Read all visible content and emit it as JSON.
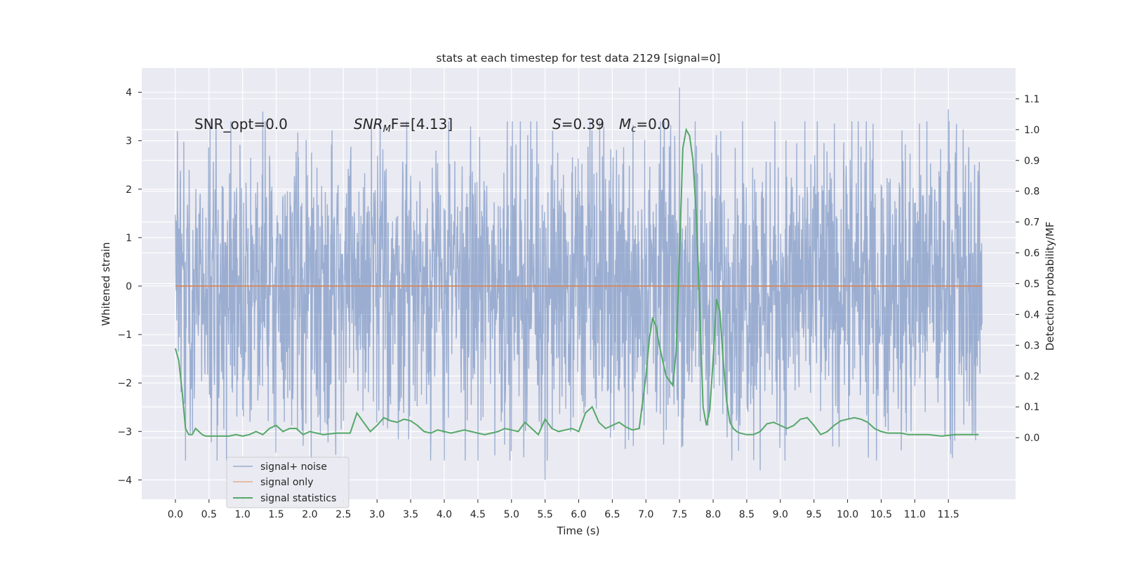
{
  "chart_data": {
    "type": "line",
    "title": "stats at each timestep for test data 2129 [signal=0]",
    "xlabel": "Time (s)",
    "ylabel_left": "Whitened strain",
    "ylabel_right": "Detection probability/MF",
    "xlim": [
      -0.5,
      12.5
    ],
    "ylim_left": [
      -4.4,
      4.5
    ],
    "ylim_right": [
      -0.2,
      1.2
    ],
    "x_ticks": [
      "0.0",
      "0.5",
      "1.0",
      "1.5",
      "2.0",
      "2.5",
      "3.0",
      "3.5",
      "4.0",
      "4.5",
      "5.0",
      "5.5",
      "6.0",
      "6.5",
      "7.0",
      "7.5",
      "8.0",
      "8.5",
      "9.0",
      "9.5",
      "10.0",
      "10.5",
      "11.0",
      "11.5"
    ],
    "y_ticks_left": [
      "4",
      "3",
      "2",
      "1",
      "0",
      "−1",
      "−2",
      "−3",
      "−4"
    ],
    "y_ticks_right": [
      "1.1",
      "1.0",
      "0.9",
      "0.8",
      "0.7",
      "0.6",
      "0.5",
      "0.4",
      "0.3",
      "0.2",
      "0.1",
      "0.0"
    ],
    "grid": true,
    "legend_position": "lower-left",
    "annotations": {
      "snr_opt": "SNR_opt=0.0",
      "snr_mf_base": "SNR",
      "snr_mf_sub": "M",
      "snr_mf_rest": "F=[4.13]",
      "s_var": "S",
      "s_val": "=0.39",
      "mc_var": "M",
      "mc_sub": "c",
      "mc_val": "=0.0"
    },
    "series": [
      {
        "name": "signal+ noise",
        "color": "#4c72b0",
        "axis": "left",
        "x_range": [
          0.0,
          12.0
        ],
        "envelope": "noise",
        "notable_peaks": [
          {
            "x": 7.5,
            "y": 4.1
          },
          {
            "x": 11.5,
            "y": 3.65
          },
          {
            "x": 1.3,
            "y": 3.6
          },
          {
            "x": 5.5,
            "y": -4.0
          },
          {
            "x": 8.7,
            "y": -3.8
          }
        ]
      },
      {
        "name": "signal only",
        "color": "#dd8452",
        "axis": "left",
        "x": [
          0.0,
          12.0
        ],
        "y": [
          0.0,
          0.0
        ]
      },
      {
        "name": "signal statistics",
        "color": "#55a868",
        "axis": "right",
        "x": [
          0.0,
          0.05,
          0.1,
          0.15,
          0.2,
          0.25,
          0.3,
          0.35,
          0.4,
          0.45,
          0.5,
          0.6,
          0.7,
          0.8,
          0.9,
          1.0,
          1.1,
          1.2,
          1.3,
          1.4,
          1.5,
          1.6,
          1.7,
          1.8,
          1.9,
          2.0,
          2.2,
          2.4,
          2.6,
          2.7,
          2.8,
          2.9,
          3.0,
          3.1,
          3.2,
          3.3,
          3.4,
          3.5,
          3.6,
          3.7,
          3.8,
          3.9,
          4.0,
          4.1,
          4.2,
          4.3,
          4.4,
          4.5,
          4.6,
          4.7,
          4.8,
          4.9,
          5.0,
          5.1,
          5.2,
          5.3,
          5.4,
          5.5,
          5.6,
          5.7,
          5.8,
          5.9,
          6.0,
          6.1,
          6.2,
          6.3,
          6.4,
          6.5,
          6.6,
          6.7,
          6.8,
          6.9,
          7.0,
          7.05,
          7.1,
          7.15,
          7.2,
          7.3,
          7.4,
          7.45,
          7.5,
          7.55,
          7.6,
          7.65,
          7.7,
          7.75,
          7.8,
          7.85,
          7.9,
          7.95,
          8.0,
          8.05,
          8.1,
          8.15,
          8.2,
          8.25,
          8.3,
          8.35,
          8.4,
          8.5,
          8.6,
          8.7,
          8.8,
          8.9,
          9.0,
          9.1,
          9.2,
          9.3,
          9.4,
          9.5,
          9.6,
          9.7,
          9.8,
          9.9,
          10.0,
          10.1,
          10.2,
          10.3,
          10.4,
          10.5,
          10.6,
          10.7,
          10.8,
          10.9,
          11.0,
          11.2,
          11.4,
          11.6,
          11.8,
          11.95
        ],
        "y": [
          0.29,
          0.25,
          0.15,
          0.03,
          0.01,
          0.01,
          0.03,
          0.02,
          0.01,
          0.005,
          0.005,
          0.005,
          0.005,
          0.005,
          0.01,
          0.005,
          0.01,
          0.02,
          0.01,
          0.03,
          0.04,
          0.02,
          0.03,
          0.03,
          0.01,
          0.02,
          0.01,
          0.015,
          0.015,
          0.08,
          0.05,
          0.02,
          0.04,
          0.065,
          0.055,
          0.05,
          0.06,
          0.055,
          0.04,
          0.02,
          0.015,
          0.025,
          0.02,
          0.015,
          0.02,
          0.025,
          0.02,
          0.015,
          0.01,
          0.015,
          0.02,
          0.03,
          0.025,
          0.02,
          0.05,
          0.03,
          0.01,
          0.06,
          0.03,
          0.02,
          0.025,
          0.03,
          0.02,
          0.08,
          0.1,
          0.05,
          0.03,
          0.04,
          0.05,
          0.035,
          0.025,
          0.03,
          0.2,
          0.32,
          0.39,
          0.36,
          0.3,
          0.2,
          0.17,
          0.28,
          0.6,
          0.94,
          1.0,
          0.98,
          0.9,
          0.72,
          0.42,
          0.1,
          0.04,
          0.09,
          0.25,
          0.45,
          0.41,
          0.25,
          0.12,
          0.05,
          0.03,
          0.02,
          0.015,
          0.01,
          0.01,
          0.02,
          0.045,
          0.05,
          0.04,
          0.03,
          0.04,
          0.06,
          0.065,
          0.04,
          0.01,
          0.02,
          0.04,
          0.055,
          0.06,
          0.065,
          0.06,
          0.05,
          0.03,
          0.02,
          0.015,
          0.015,
          0.015,
          0.01,
          0.01,
          0.01,
          0.005,
          0.01,
          0.01,
          0.01
        ]
      }
    ]
  }
}
